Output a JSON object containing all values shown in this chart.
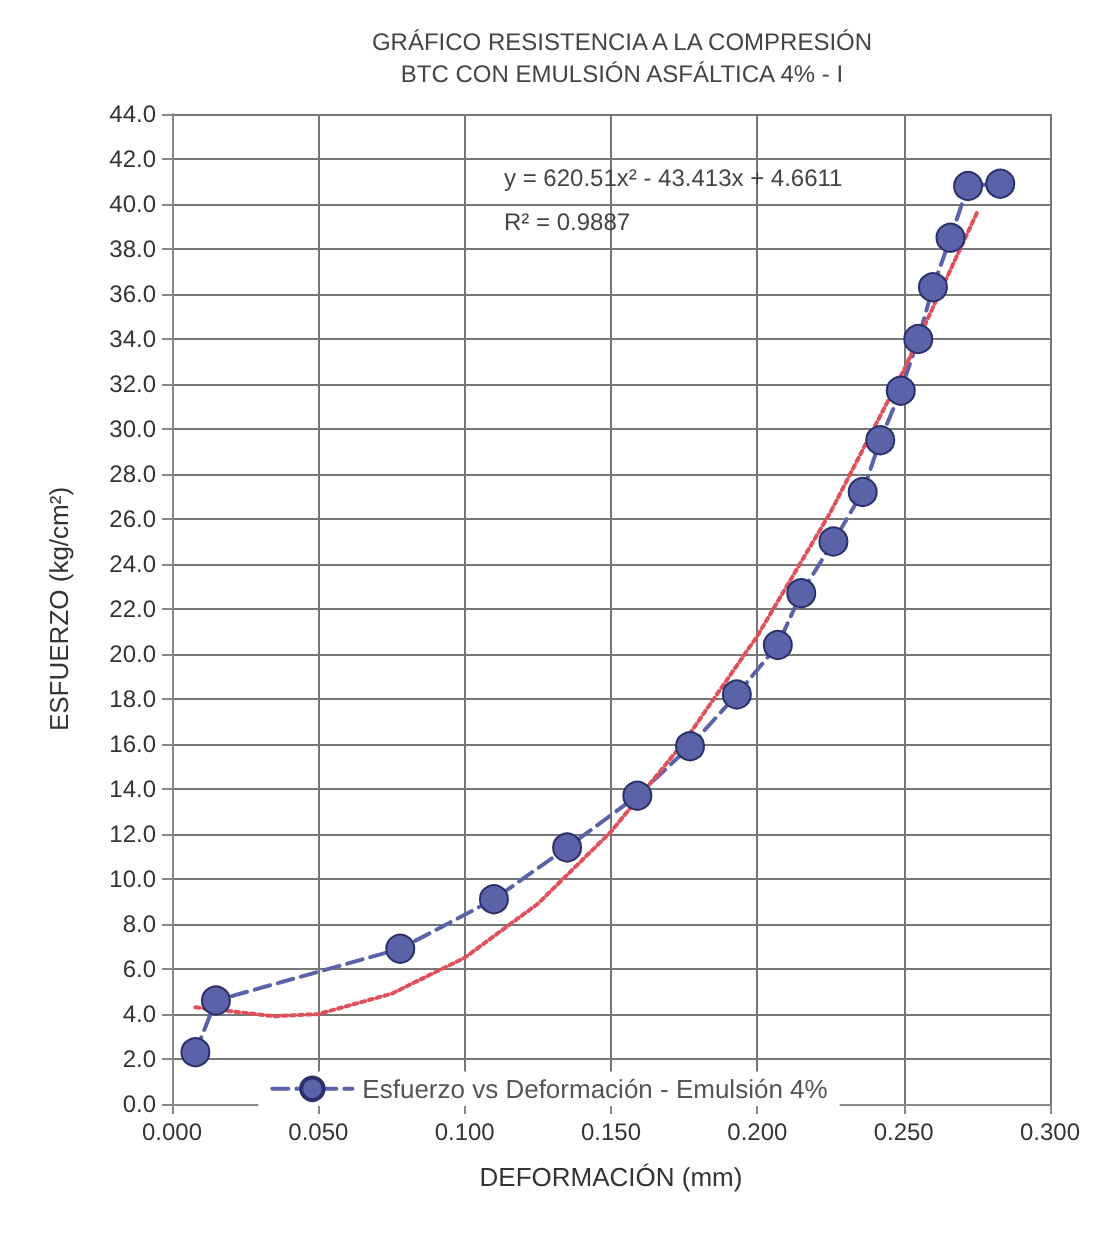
{
  "chart_data": {
    "type": "line",
    "title": "GRÁFICO RESISTENCIA A LA COMPRESIÓN\nBTC CON EMULSIÓN ASFÁLTICA 4% - I",
    "xlabel": "DEFORMACIÓN (mm)",
    "ylabel": "ESFUERZO (kg/cm²)",
    "annotations": [
      "y = 620.51x² - 43.413x + 4.6611",
      "R² = 0.9887"
    ],
    "series": [
      {
        "name": "Esfuerzo vs Deformación - Emulsión 4%",
        "color": "#5a62a8",
        "marker": "circle",
        "line_style": "dashed",
        "x": [
          0.008,
          0.015,
          0.078,
          0.11,
          0.135,
          0.159,
          0.177,
          0.193,
          0.207,
          0.215,
          0.226,
          0.236,
          0.242,
          0.249,
          0.255,
          0.26,
          0.266,
          0.272,
          0.283
        ],
        "values": [
          2.3,
          4.6,
          6.9,
          9.1,
          11.4,
          13.7,
          15.9,
          18.2,
          20.4,
          22.7,
          25.0,
          27.2,
          29.5,
          31.7,
          34.0,
          36.3,
          38.5,
          40.8,
          40.9
        ]
      },
      {
        "color": "#e0505a",
        "marker": "none",
        "line_style": "dotted",
        "x": [
          0.008,
          0.035,
          0.05,
          0.075,
          0.1,
          0.125,
          0.15,
          0.175,
          0.2,
          0.225,
          0.25,
          0.275
        ],
        "values": [
          4.3,
          3.9,
          4.0,
          4.9,
          6.5,
          8.9,
          12.1,
          16.1,
          20.8,
          26.3,
          32.6,
          39.6
        ]
      }
    ],
    "xlim": [
      0,
      0.3
    ],
    "xticks": [
      {
        "value": 0,
        "label": "0.000"
      },
      {
        "value": 0.05,
        "label": "0.050"
      },
      {
        "value": 0.1,
        "label": "0.100"
      },
      {
        "value": 0.15,
        "label": "0.150"
      },
      {
        "value": 0.2,
        "label": "0.200"
      },
      {
        "value": 0.25,
        "label": "0.250"
      },
      {
        "value": 0.3,
        "label": "0.300"
      }
    ],
    "ylim": [
      0,
      44
    ],
    "yticks": [
      {
        "value": 0,
        "label": "0.0"
      },
      {
        "value": 2,
        "label": "2.0"
      },
      {
        "value": 4,
        "label": "4.0"
      },
      {
        "value": 6,
        "label": "6.0"
      },
      {
        "value": 8,
        "label": "8.0"
      },
      {
        "value": 10,
        "label": "10.0"
      },
      {
        "value": 12,
        "label": "12.0"
      },
      {
        "value": 14,
        "label": "14.0"
      },
      {
        "value": 16,
        "label": "16.0"
      },
      {
        "value": 18,
        "label": "18.0"
      },
      {
        "value": 20,
        "label": "20.0"
      },
      {
        "value": 22,
        "label": "22.0"
      },
      {
        "value": 24,
        "label": "24.0"
      },
      {
        "value": 26,
        "label": "26.0"
      },
      {
        "value": 28,
        "label": "28.0"
      },
      {
        "value": 30,
        "label": "30.0"
      },
      {
        "value": 32,
        "label": "32.0"
      },
      {
        "value": 34,
        "label": "34.0"
      },
      {
        "value": 36,
        "label": "36.0"
      },
      {
        "value": 38,
        "label": "38.0"
      },
      {
        "value": 40,
        "label": "40.0"
      },
      {
        "value": 42,
        "label": "42.0"
      },
      {
        "value": 44,
        "label": "44.0"
      }
    ],
    "grid": true,
    "legend": "bottom"
  }
}
